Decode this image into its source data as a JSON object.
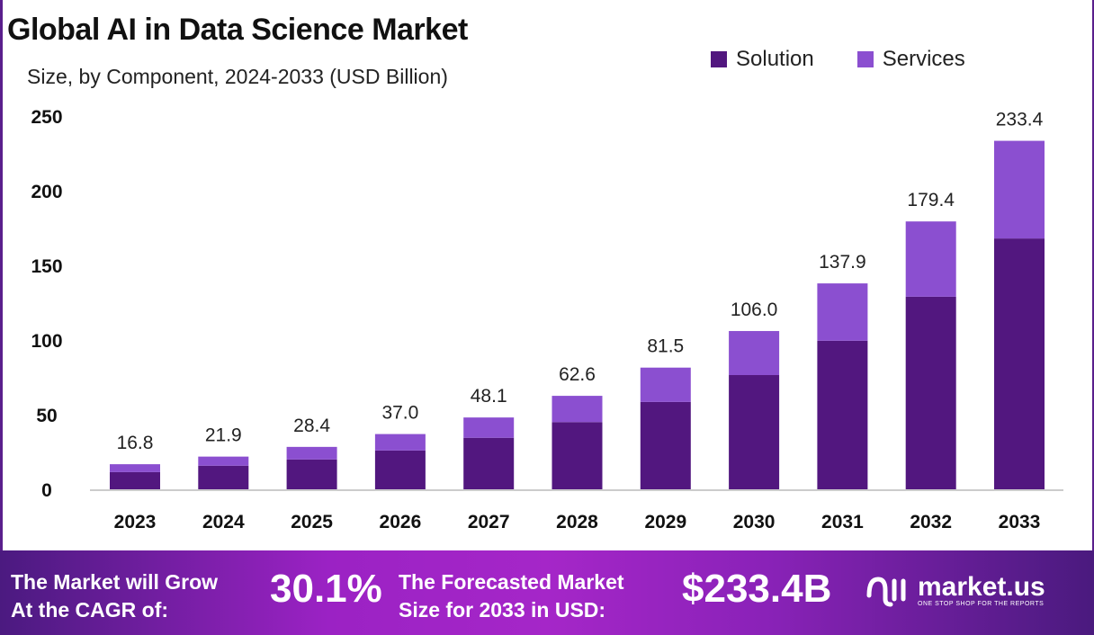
{
  "chart_data": {
    "type": "bar",
    "stacked": true,
    "title": "Global AI in Data Science Market",
    "subtitle": "Size, by Component, 2024-2033 (USD Billion)",
    "categories": [
      "2023",
      "2024",
      "2025",
      "2026",
      "2027",
      "2028",
      "2029",
      "2030",
      "2031",
      "2032",
      "2033"
    ],
    "series": [
      {
        "name": "Solution",
        "color": "#52177f",
        "values": [
          11.5,
          15.8,
          20.0,
          26.0,
          34.5,
          45.0,
          58.5,
          76.5,
          99.5,
          129.0,
          168.0
        ]
      },
      {
        "name": "Services",
        "color": "#8b4fd0",
        "values": [
          5.3,
          6.1,
          8.4,
          11.0,
          13.6,
          17.6,
          23.0,
          29.5,
          38.4,
          50.4,
          65.4
        ]
      }
    ],
    "totals": [
      "16.8",
      "21.9",
      "28.4",
      "37.0",
      "48.1",
      "62.6",
      "81.5",
      "106.0",
      "137.9",
      "179.4",
      "233.4"
    ],
    "yticks": [
      "0",
      "50",
      "100",
      "150",
      "200",
      "250"
    ],
    "ylim": [
      0,
      250
    ],
    "grid": false,
    "legend": "top-right"
  },
  "footer": {
    "cagr_label_line1": "The Market will Grow",
    "cagr_label_line2": "At the CAGR of:",
    "cagr_value": "30.1%",
    "forecast_label_line1": "The Forecasted  Market",
    "forecast_label_line2": "Size for 2033 in USD:",
    "forecast_value": "$233.4B",
    "brand_name": "market.us",
    "brand_tagline": "ONE STOP SHOP FOR THE REPORTS"
  }
}
